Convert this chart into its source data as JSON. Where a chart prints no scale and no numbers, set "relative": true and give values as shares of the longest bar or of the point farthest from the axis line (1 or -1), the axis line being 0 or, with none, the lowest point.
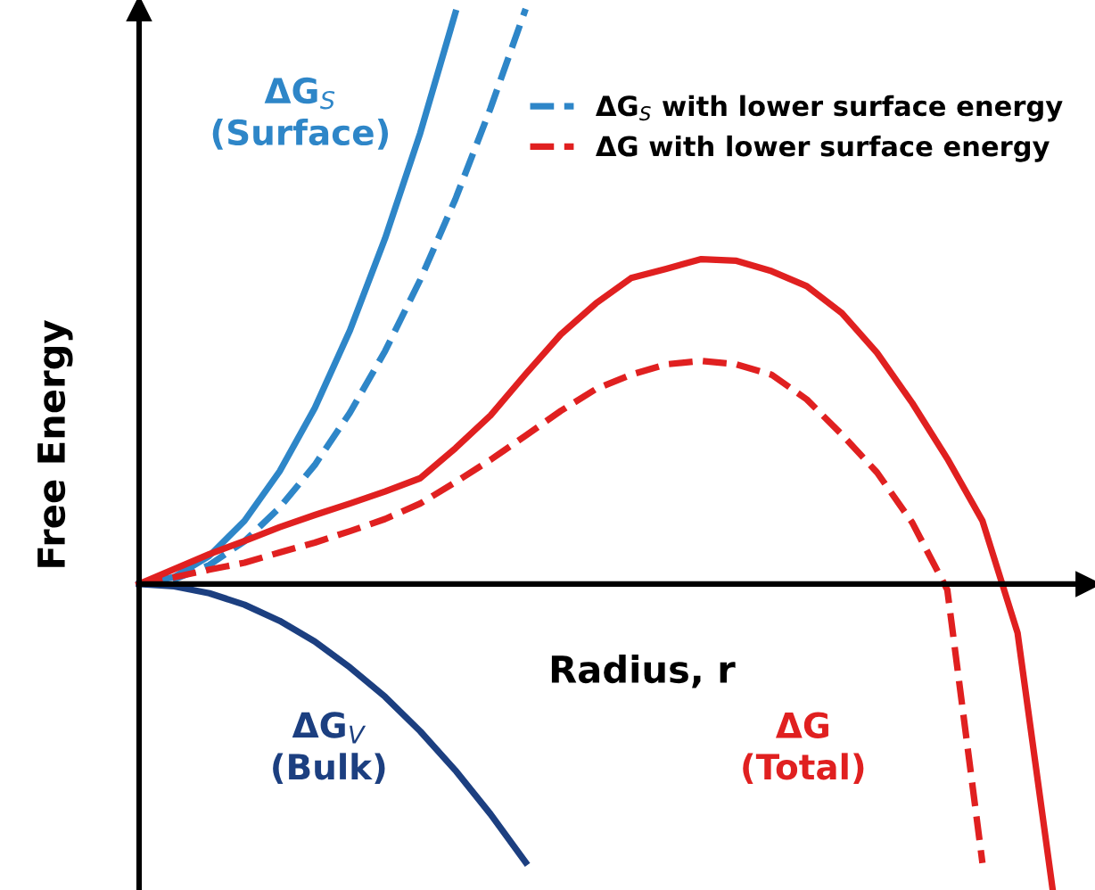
{
  "chart_data": {
    "type": "line",
    "relative": true,
    "xlabel": "Radius, r",
    "ylabel": "Free Energy",
    "legend": "top right",
    "marker": "none",
    "categories": [
      null,
      null,
      null,
      null,
      null,
      null,
      null,
      null,
      null,
      null,
      null,
      null,
      null,
      null,
      null,
      null,
      null,
      null,
      null,
      null,
      null,
      null,
      null,
      null,
      null,
      null,
      null
    ],
    "series": [
      {
        "color": "#2e86c8",
        "line_style": "solid",
        "values": [
          0,
          0.0122,
          0.049,
          0.11,
          0.196,
          0.306,
          0.441,
          0.601,
          0.784,
          0.993,
          null,
          null,
          null,
          null,
          null,
          null,
          null,
          null,
          null,
          null,
          null,
          null,
          null,
          null,
          null,
          null,
          null
        ]
      },
      {
        "name": "ΔG$_{S}$ with lower surface energy",
        "color": "#2e86c8",
        "line_style": "dashed",
        "values": [
          0,
          0.0082,
          0.0331,
          0.0744,
          0.133,
          0.207,
          0.298,
          0.405,
          0.529,
          0.669,
          0.827,
          1.0,
          null,
          null,
          null,
          null,
          null,
          null,
          null,
          null,
          null,
          null,
          null,
          null,
          null,
          null,
          null
        ]
      },
      {
        "color": "#1c3f80",
        "line_style": "solid",
        "values": [
          0,
          -0.004,
          -0.016,
          -0.036,
          -0.064,
          -0.1,
          -0.145,
          -0.196,
          -0.256,
          -0.324,
          -0.4,
          -0.484,
          null,
          null,
          null,
          null,
          null,
          null,
          null,
          null,
          null,
          null,
          null,
          null,
          null,
          null,
          null
        ]
      },
      {
        "color": "#e02020",
        "line_style": "solid",
        "values": [
          0,
          0.026,
          0.052,
          0.075,
          0.099,
          0.12,
          0.14,
          0.161,
          0.184,
          0.236,
          0.293,
          0.365,
          0.434,
          0.488,
          0.532,
          0.548,
          0.565,
          0.562,
          0.544,
          0.518,
          0.471,
          0.402,
          0.315,
          0.218,
          0.11,
          -0.085,
          -0.532
        ]
      },
      {
        "name": "ΔG with lower surface energy",
        "color": "#e02020",
        "line_style": "dashed",
        "values": [
          0,
          0.012,
          0.025,
          0.037,
          0.055,
          0.072,
          0.092,
          0.113,
          0.14,
          0.177,
          0.216,
          0.258,
          0.301,
          0.339,
          0.364,
          0.382,
          0.388,
          0.382,
          0.364,
          0.321,
          0.26,
          0.194,
          0.107,
          -0.01,
          -0.485,
          null,
          null
        ]
      }
    ],
    "annotations": [
      "ΔG$_{S}$\n(Surface)",
      "ΔG$_{V}$\n(Bulk)",
      "ΔG\n(Total)"
    ]
  }
}
